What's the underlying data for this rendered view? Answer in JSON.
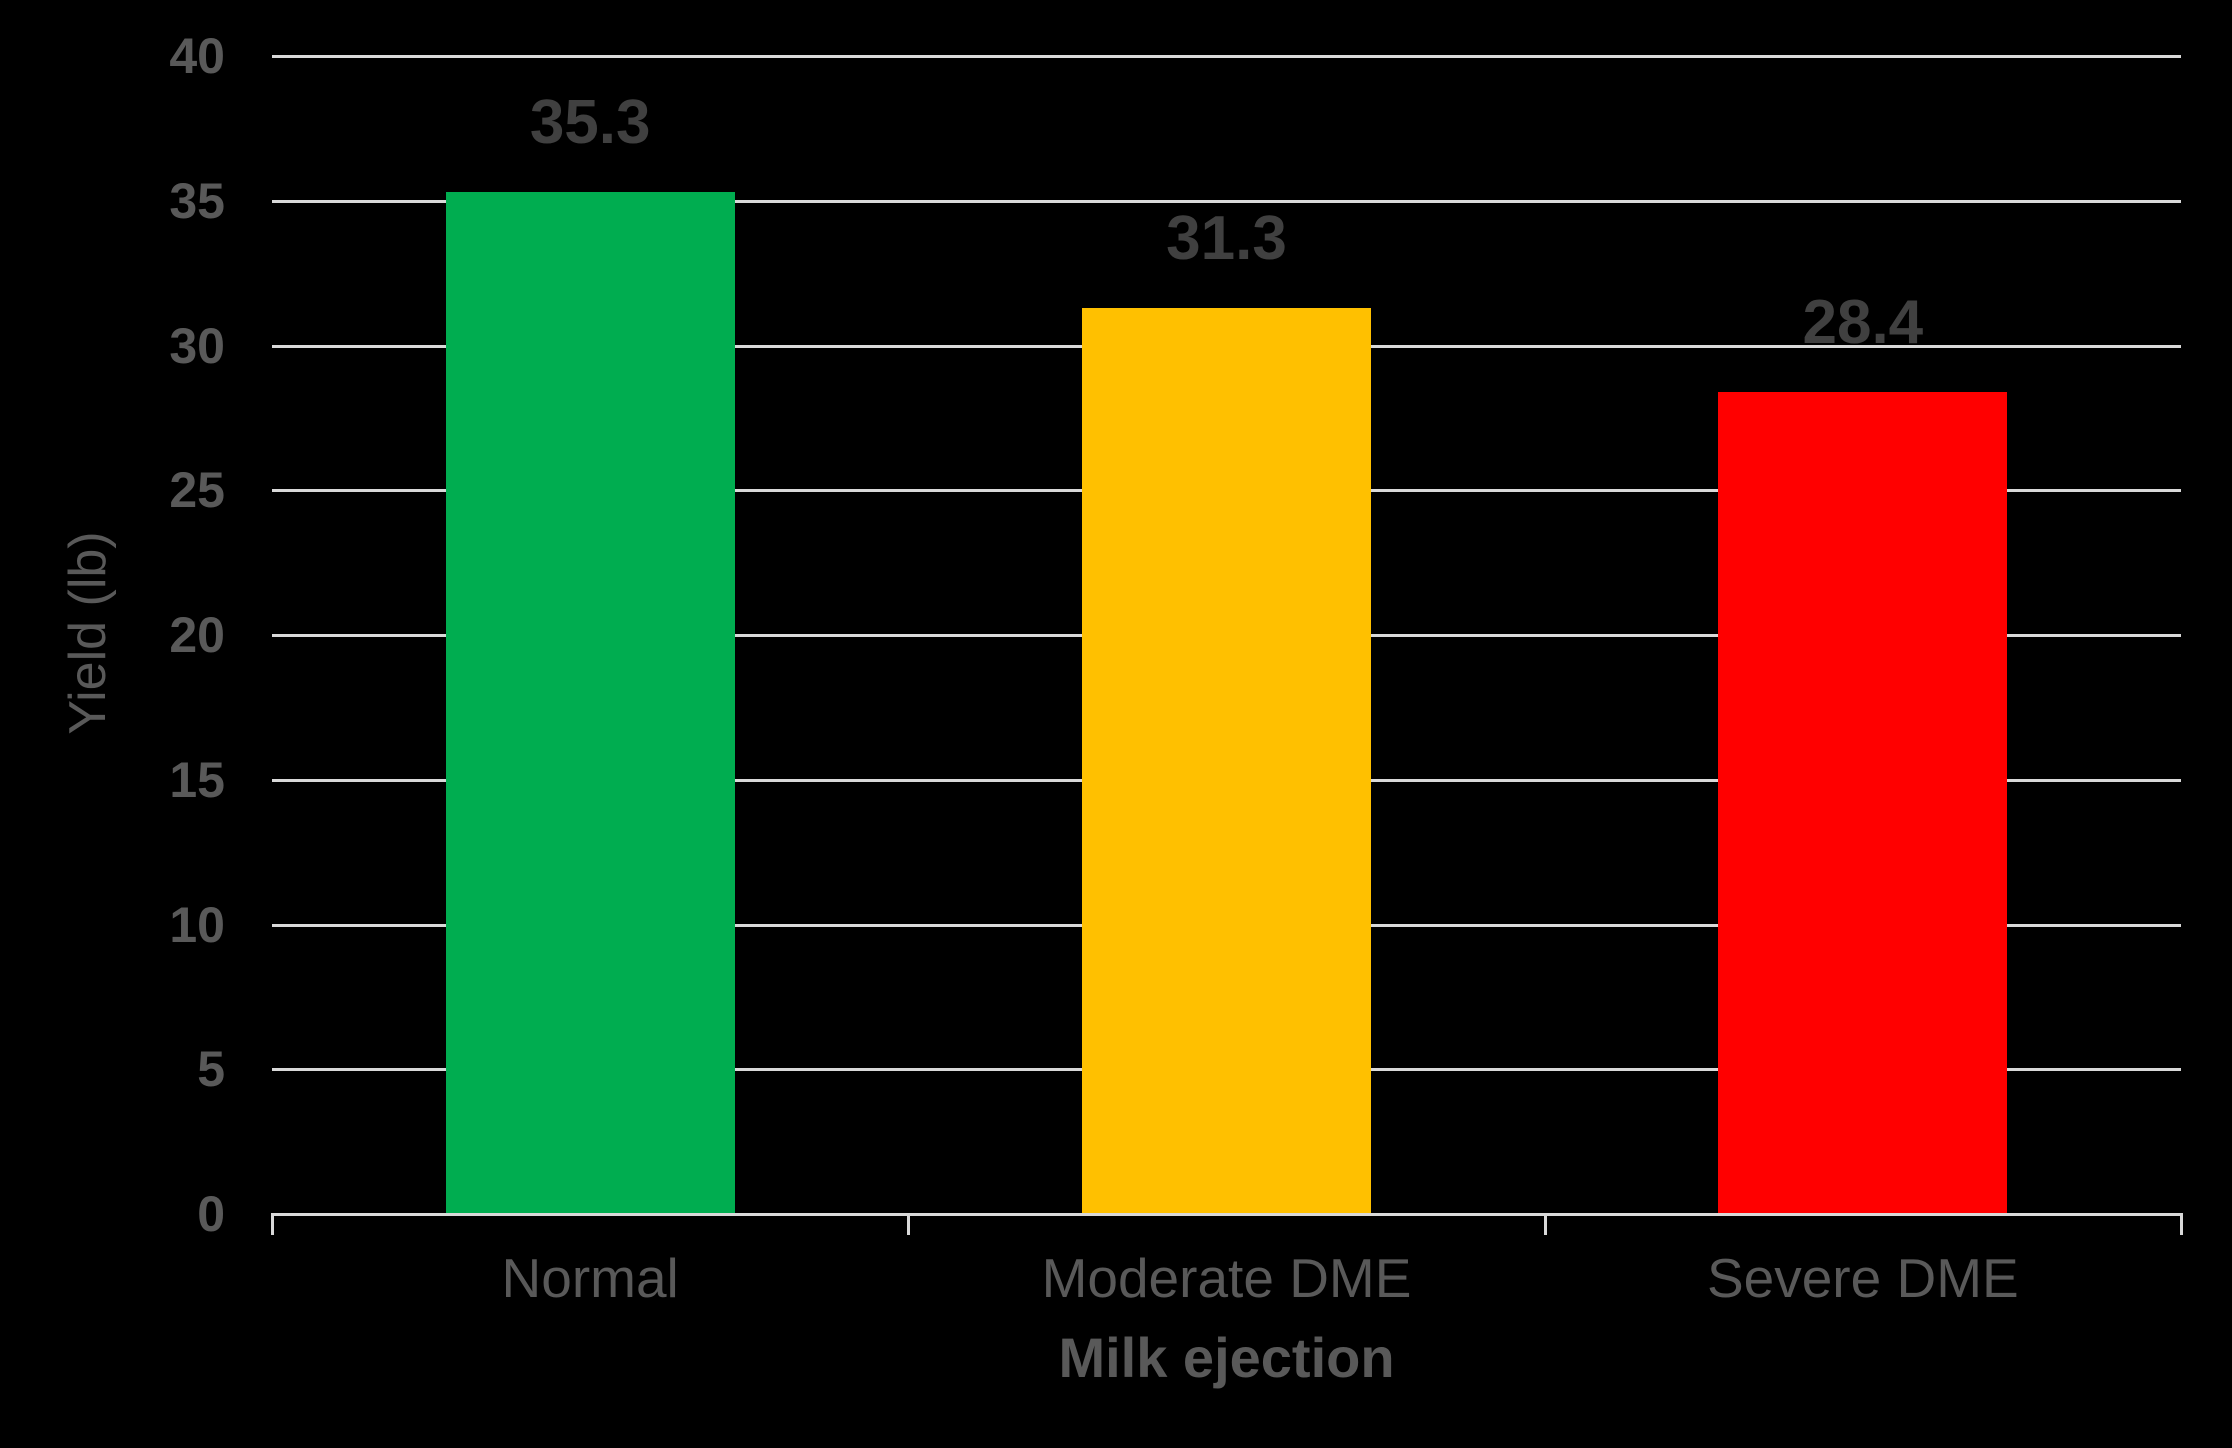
{
  "chart_data": {
    "type": "bar",
    "title": "",
    "xlabel": "Milk ejection",
    "ylabel": "Yield (lb)",
    "categories": [
      "Normal",
      "Moderate DME",
      "Severe DME"
    ],
    "values": [
      35.3,
      31.3,
      28.4
    ],
    "data_labels": [
      "35.3",
      "31.3",
      "28.4"
    ],
    "colors": [
      "#00AD50",
      "#FFC000",
      "#FF0000"
    ],
    "ylim": [
      0,
      40
    ],
    "yticks": [
      "0",
      "5",
      "10",
      "15",
      "20",
      "25",
      "30",
      "35",
      "40"
    ],
    "grid": true,
    "legend": null
  },
  "style": {
    "background": "#000000",
    "gridline_color": "#D9D9D9",
    "text_color": "#595959",
    "data_label_color": "#404040"
  }
}
